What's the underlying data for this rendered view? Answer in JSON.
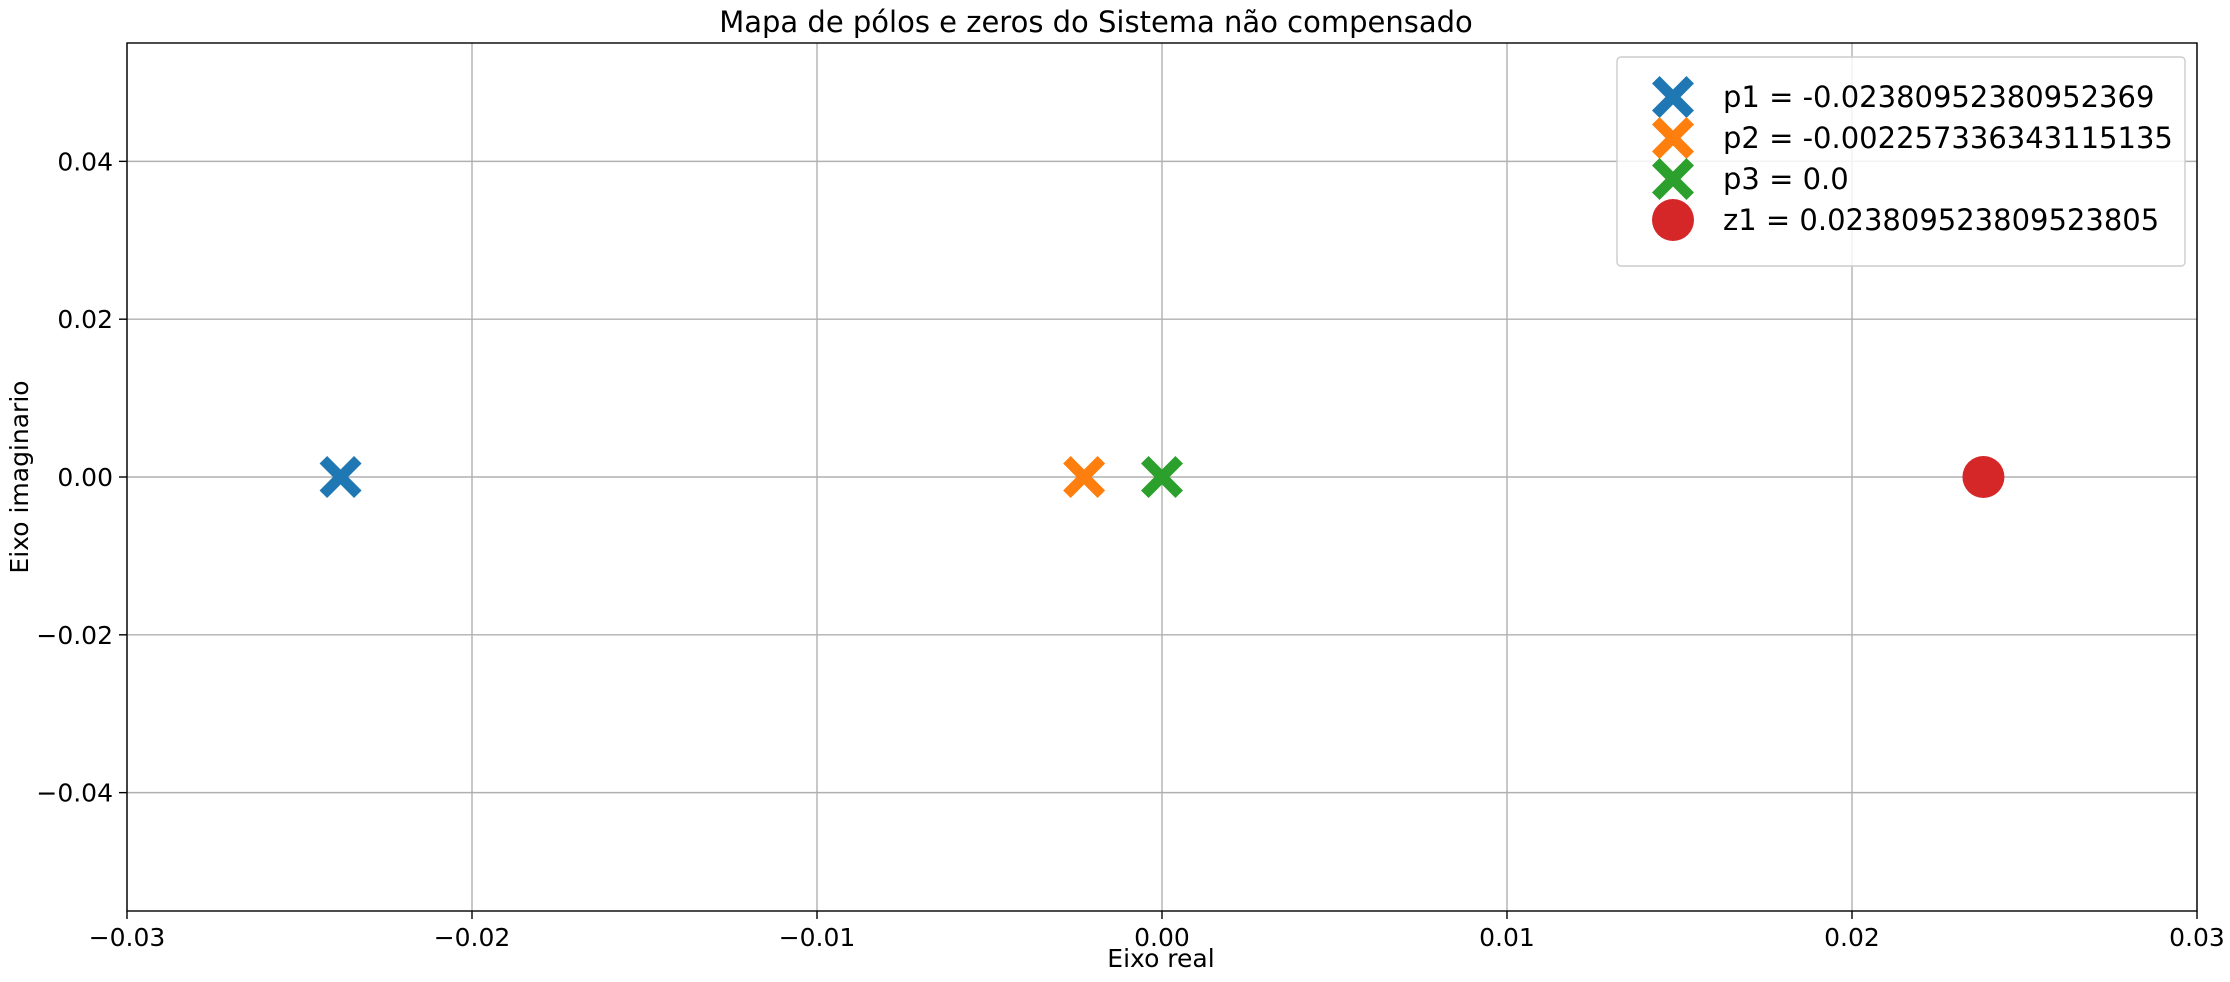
{
  "chart_data": {
    "type": "scatter",
    "title": "Mapa de pólos e zeros do Sistema não compensado",
    "xlabel": "Eixo real",
    "ylabel": "Eixo imaginario",
    "xlim": [
      -0.03,
      0.03
    ],
    "ylim": [
      -0.055,
      0.055
    ],
    "xticks": [
      -0.03,
      -0.02,
      -0.01,
      0.0,
      0.01,
      0.02,
      0.03
    ],
    "xtick_labels": [
      "−0.03",
      "−0.02",
      "−0.01",
      "0.00",
      "0.01",
      "0.02",
      "0.03"
    ],
    "yticks": [
      -0.04,
      -0.02,
      0.0,
      0.02,
      0.04
    ],
    "ytick_labels": [
      "−0.04",
      "−0.02",
      "0.00",
      "0.02",
      "0.04"
    ],
    "grid": true,
    "legend_position": "top-right",
    "series": [
      {
        "name": "p1 = -0.02380952380952369",
        "marker": "x-filled",
        "color": "#1f77b4",
        "points": [
          {
            "x": -0.02380952380952369,
            "y": 0.0
          }
        ]
      },
      {
        "name": "p2 = -0.002257336343115135",
        "marker": "x-filled",
        "color": "#ff7f0e",
        "points": [
          {
            "x": -0.002257336343115135,
            "y": 0.0
          }
        ]
      },
      {
        "name": "p3 = 0.0",
        "marker": "x-filled",
        "color": "#2ca02c",
        "points": [
          {
            "x": 0.0,
            "y": 0.0
          }
        ]
      },
      {
        "name": "z1 = 0.023809523809523805",
        "marker": "circle",
        "color": "#d62728",
        "points": [
          {
            "x": 0.023809523809523805,
            "y": 0.0
          }
        ]
      }
    ]
  }
}
